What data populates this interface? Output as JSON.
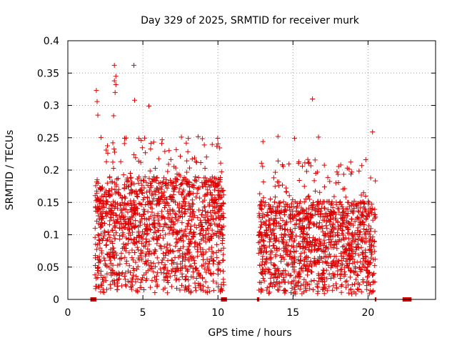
{
  "chart_data": {
    "type": "scatter",
    "title": "Day 329 of 2025, SRMTID for receiver murk",
    "xlabel": "GPS time / hours",
    "ylabel": "SRMTID / TECUs",
    "xlim": [
      0,
      24.5
    ],
    "ylim": [
      0,
      0.4
    ],
    "xticks": [
      0,
      5,
      10,
      15,
      20
    ],
    "xtick_labels": [
      "0",
      "5",
      "10",
      "15",
      "20"
    ],
    "yticks": [
      0,
      0.05,
      0.1,
      0.15,
      0.2,
      0.25,
      0.3,
      0.35,
      0.4
    ],
    "ytick_labels": [
      "0",
      "0.05",
      "0.1",
      "0.15",
      "0.2",
      "0.25",
      "0.3",
      "0.35",
      "0.4"
    ],
    "grid": true,
    "marker": "+",
    "color": "#dd0000",
    "clusters": [
      {
        "x_start": 1.8,
        "x_end": 10.4,
        "y_typical": 0.1,
        "y_max": 0.36,
        "density": 1400
      },
      {
        "x_start": 12.7,
        "x_end": 20.5,
        "y_typical": 0.08,
        "y_max": 0.31,
        "density": 1200
      }
    ],
    "outliers": [
      {
        "x": 3.1,
        "y": 0.362
      },
      {
        "x": 4.4,
        "y": 0.362
      },
      {
        "x": 3.2,
        "y": 0.345
      },
      {
        "x": 3.1,
        "y": 0.338
      },
      {
        "x": 3.2,
        "y": 0.332
      },
      {
        "x": 1.9,
        "y": 0.323
      },
      {
        "x": 3.15,
        "y": 0.32
      },
      {
        "x": 4.45,
        "y": 0.308
      },
      {
        "x": 1.95,
        "y": 0.306
      },
      {
        "x": 5.4,
        "y": 0.299
      },
      {
        "x": 16.3,
        "y": 0.31
      },
      {
        "x": 2.0,
        "y": 0.285
      },
      {
        "x": 3.05,
        "y": 0.284
      },
      {
        "x": 20.3,
        "y": 0.259
      },
      {
        "x": 14.0,
        "y": 0.252
      },
      {
        "x": 16.7,
        "y": 0.251
      },
      {
        "x": 15.1,
        "y": 0.249
      },
      {
        "x": 13.0,
        "y": 0.244
      }
    ],
    "zero_value_bands": [
      {
        "x_start": 1.5,
        "x_end": 1.9
      },
      {
        "x_start": 10.2,
        "x_end": 10.6
      },
      {
        "x_start": 12.6,
        "x_end": 12.75
      },
      {
        "x_start": 20.45,
        "x_end": 20.55
      },
      {
        "x_start": 22.3,
        "x_end": 22.9
      }
    ]
  }
}
